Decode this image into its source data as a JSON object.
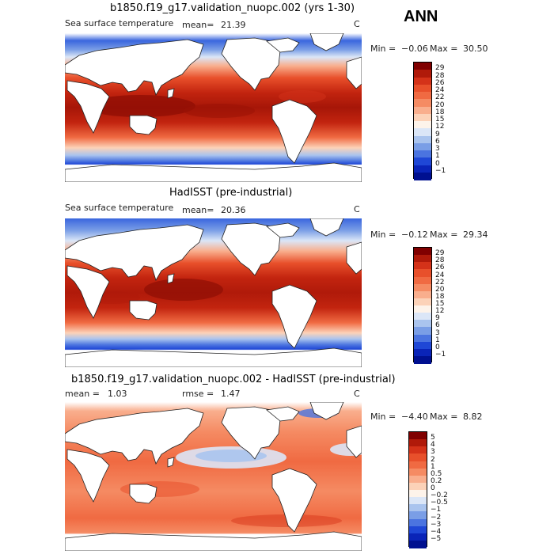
{
  "season": "ANN",
  "panels": [
    {
      "id": "model",
      "title": "b1850.f19_g17.validation_nuopc.002 (yrs 1-30)",
      "left_label": "Sea surface temperature",
      "stat_label": "mean=",
      "stat_value": "21.39",
      "units": "C",
      "min_label": "Min =",
      "min_value": "−0.06",
      "max_label": "Max =",
      "max_value": "30.50",
      "colorbar_labels": [
        "29",
        "28",
        "26",
        "24",
        "22",
        "20",
        "18",
        "15",
        "12",
        "9",
        "6",
        "3",
        "1",
        "0",
        "−1"
      ],
      "colorbar_colors": [
        "#800000",
        "#b01a0a",
        "#d43219",
        "#e8502b",
        "#f06a42",
        "#f58b63",
        "#f9ae8d",
        "#fcd2b8",
        "#fdf3ea",
        "#dbe6f7",
        "#aac4ee",
        "#7a9ee6",
        "#4b74e0",
        "#1f47d6",
        "#0a24b8",
        "#001090"
      ]
    },
    {
      "id": "obs",
      "title": "HadISST (pre-industrial)",
      "left_label": "Sea surface temperature",
      "stat_label": "mean=",
      "stat_value": "20.36",
      "units": "C",
      "min_label": "Min =",
      "min_value": "−0.12",
      "max_label": "Max =",
      "max_value": "29.34",
      "colorbar_labels": [
        "29",
        "28",
        "26",
        "24",
        "22",
        "20",
        "18",
        "15",
        "12",
        "9",
        "6",
        "3",
        "1",
        "0",
        "−1"
      ],
      "colorbar_colors": [
        "#800000",
        "#b01a0a",
        "#d43219",
        "#e8502b",
        "#f06a42",
        "#f58b63",
        "#f9ae8d",
        "#fcd2b8",
        "#fdf3ea",
        "#dbe6f7",
        "#aac4ee",
        "#7a9ee6",
        "#4b74e0",
        "#1f47d6",
        "#0a24b8",
        "#001090"
      ]
    },
    {
      "id": "diff",
      "title": "b1850.f19_g17.validation_nuopc.002 - HadISST (pre-industrial)",
      "left_label": "mean =",
      "left_value": "1.03",
      "stat_label": "rmse =",
      "stat_value": "1.47",
      "units": "C",
      "min_label": "Min =",
      "min_value": "−4.40",
      "max_label": "Max =",
      "max_value": "8.82",
      "colorbar_labels": [
        "5",
        "4",
        "3",
        "2",
        "1",
        "0.5",
        "0.2",
        "0",
        "−0.2",
        "−0.5",
        "−1",
        "−2",
        "−3",
        "−4",
        "−5"
      ],
      "colorbar_colors": [
        "#800000",
        "#b01a0a",
        "#d43219",
        "#e8502b",
        "#f06a42",
        "#f58b63",
        "#f9ae8d",
        "#fcd2b8",
        "#fdf3ea",
        "#dbe6f7",
        "#aac4ee",
        "#7a9ee6",
        "#4b74e0",
        "#1f47d6",
        "#0a24b8",
        "#001090"
      ]
    }
  ]
}
